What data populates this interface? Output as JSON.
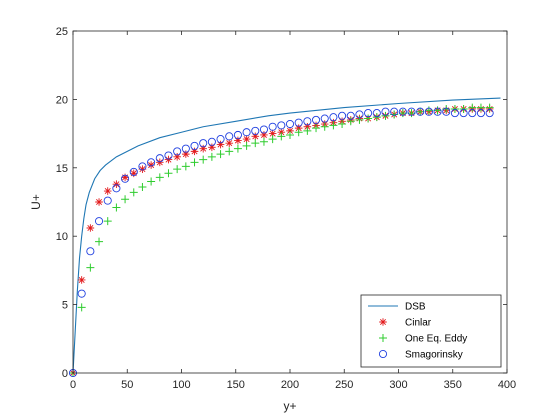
{
  "chart_data": {
    "type": "line",
    "xlabel": "y+",
    "ylabel": "U+",
    "xlim": [
      0,
      400
    ],
    "ylim": [
      0,
      25
    ],
    "xticks": [
      0,
      50,
      100,
      150,
      200,
      250,
      300,
      350,
      400
    ],
    "yticks": [
      0,
      5,
      10,
      15,
      20,
      25
    ],
    "grid": false,
    "legend_position": "bottom-right",
    "series": [
      {
        "name": "DSB",
        "kind": "line",
        "color": "#1f77b4",
        "x": [
          0,
          1,
          2,
          3,
          4,
          5,
          6,
          8,
          10,
          12,
          15,
          20,
          25,
          30,
          40,
          50,
          60,
          80,
          100,
          120,
          150,
          180,
          200,
          250,
          300,
          350,
          394
        ],
        "y": [
          0,
          1.5,
          3,
          4.5,
          6,
          7.2,
          8.4,
          10,
          11.3,
          12.3,
          13.2,
          14.2,
          14.8,
          15.2,
          15.8,
          16.2,
          16.6,
          17.2,
          17.6,
          18,
          18.4,
          18.8,
          19,
          19.4,
          19.7,
          19.95,
          20.1
        ]
      },
      {
        "name": "Cinlar",
        "kind": "marker",
        "marker": "asterisk",
        "color": "#e31a1c",
        "x": [
          0,
          8,
          16,
          24,
          32,
          40,
          48,
          56,
          64,
          72,
          80,
          88,
          96,
          104,
          112,
          120,
          128,
          136,
          144,
          152,
          160,
          168,
          176,
          184,
          192,
          200,
          208,
          216,
          224,
          232,
          240,
          248,
          256,
          264,
          272,
          280,
          288,
          296,
          304,
          312,
          320,
          328,
          336,
          344,
          352,
          360,
          368,
          376,
          384
        ],
        "y": [
          0,
          6.8,
          10.6,
          12.5,
          13.3,
          13.8,
          14.3,
          14.6,
          14.9,
          15.2,
          15.4,
          15.6,
          15.8,
          16.0,
          16.2,
          16.4,
          16.5,
          16.7,
          16.8,
          17.0,
          17.1,
          17.3,
          17.4,
          17.5,
          17.6,
          17.7,
          17.9,
          18.0,
          18.1,
          18.2,
          18.3,
          18.4,
          18.5,
          18.6,
          18.6,
          18.7,
          18.8,
          18.9,
          19.0,
          19.0,
          19.1,
          19.1,
          19.2,
          19.2,
          19.3,
          19.3,
          19.3,
          19.3,
          19.3
        ]
      },
      {
        "name": "One Eq. Eddy",
        "kind": "marker",
        "marker": "plus",
        "color": "#2ecc2e",
        "x": [
          0,
          8,
          16,
          24,
          32,
          40,
          48,
          56,
          64,
          72,
          80,
          88,
          96,
          104,
          112,
          120,
          128,
          136,
          144,
          152,
          160,
          168,
          176,
          184,
          192,
          200,
          208,
          216,
          224,
          232,
          240,
          248,
          256,
          264,
          272,
          280,
          288,
          296,
          304,
          312,
          320,
          328,
          336,
          344,
          352,
          360,
          368,
          376,
          384
        ],
        "y": [
          0,
          4.8,
          7.7,
          9.6,
          11.1,
          12.1,
          12.7,
          13.2,
          13.6,
          14.0,
          14.3,
          14.6,
          14.9,
          15.1,
          15.4,
          15.6,
          15.8,
          16.0,
          16.2,
          16.4,
          16.6,
          16.8,
          16.9,
          17.1,
          17.3,
          17.4,
          17.6,
          17.7,
          17.9,
          18.0,
          18.1,
          18.2,
          18.4,
          18.5,
          18.6,
          18.7,
          18.8,
          18.9,
          19.0,
          19.0,
          19.1,
          19.2,
          19.2,
          19.3,
          19.3,
          19.3,
          19.4,
          19.4,
          19.4
        ]
      },
      {
        "name": "Smagorinsky",
        "kind": "marker",
        "marker": "circle",
        "color": "#1f3fe0",
        "x": [
          0,
          8,
          16,
          24,
          32,
          40,
          48,
          56,
          64,
          72,
          80,
          88,
          96,
          104,
          112,
          120,
          128,
          136,
          144,
          152,
          160,
          168,
          176,
          184,
          192,
          200,
          208,
          216,
          224,
          232,
          240,
          248,
          256,
          264,
          272,
          280,
          288,
          296,
          304,
          312,
          320,
          328,
          336,
          344,
          352,
          360,
          368,
          376,
          384
        ],
        "y": [
          0,
          5.8,
          8.9,
          11.1,
          12.6,
          13.5,
          14.2,
          14.7,
          15.1,
          15.4,
          15.7,
          15.9,
          16.2,
          16.4,
          16.6,
          16.8,
          16.9,
          17.1,
          17.3,
          17.4,
          17.6,
          17.7,
          17.8,
          18.0,
          18.1,
          18.2,
          18.3,
          18.4,
          18.5,
          18.6,
          18.7,
          18.8,
          18.8,
          18.9,
          19.0,
          19.0,
          19.1,
          19.1,
          19.1,
          19.1,
          19.1,
          19.1,
          19.1,
          19.1,
          19.0,
          19.0,
          19.0,
          19.0,
          19.0
        ]
      }
    ]
  }
}
